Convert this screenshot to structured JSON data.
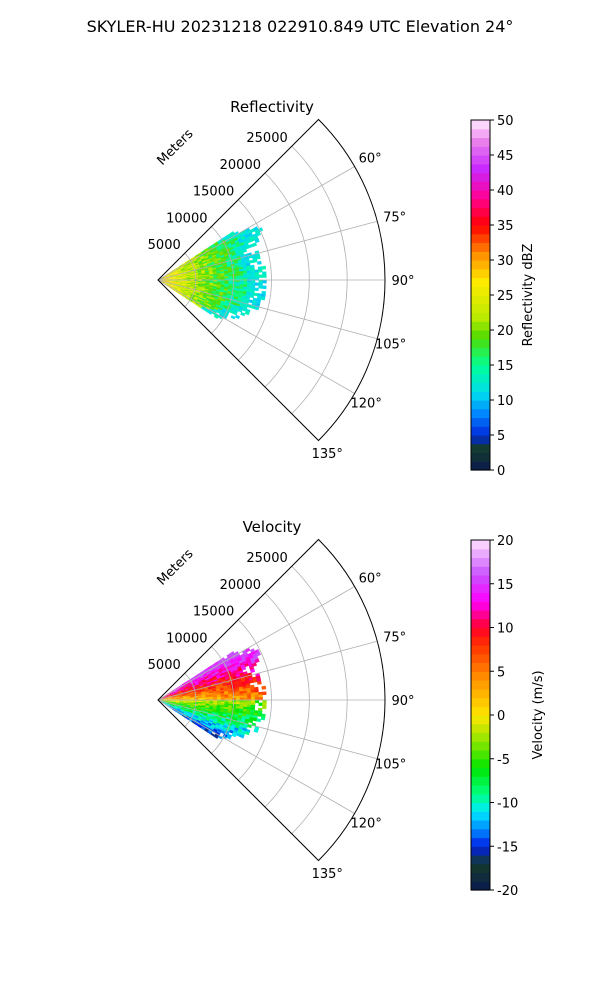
{
  "figure": {
    "suptitle": "SKYLER-HU  20231218  022910.849 UTC Elevation 24°"
  },
  "panels": [
    {
      "title": "Reflectivity",
      "radial_axis_label": "Meters",
      "range_ticks": [
        "5000",
        "10000",
        "15000",
        "20000",
        "25000"
      ],
      "azimuth_ticks": [
        "60°",
        "75°",
        "90°",
        "105°",
        "120°",
        "135°"
      ],
      "colorbar": {
        "label": "Reflectivity dBZ",
        "ticks": [
          "0",
          "5",
          "10",
          "15",
          "20",
          "25",
          "30",
          "35",
          "40",
          "45",
          "50"
        ]
      }
    },
    {
      "title": "Velocity",
      "radial_axis_label": "Meters",
      "range_ticks": [
        "5000",
        "10000",
        "15000",
        "20000",
        "25000"
      ],
      "azimuth_ticks": [
        "60°",
        "75°",
        "90°",
        "105°",
        "120°",
        "135°"
      ],
      "colorbar": {
        "label": "Velocity (m/s)",
        "ticks": [
          "-20",
          "-15",
          "-10",
          "-5",
          "0",
          "5",
          "10",
          "15",
          "20"
        ]
      }
    }
  ],
  "chart_data": [
    {
      "type": "heatmap",
      "projection": "polar-sector",
      "title": "Reflectivity",
      "theta_range_deg": [
        45,
        135
      ],
      "theta_ticks_deg": [
        60,
        75,
        90,
        105,
        120,
        135
      ],
      "r_range_m": [
        0,
        30000
      ],
      "r_ticks_m": [
        5000,
        10000,
        15000,
        20000,
        25000
      ],
      "r_label": "Meters",
      "grid": true,
      "colorbar": {
        "label": "Reflectivity dBZ",
        "range": [
          0,
          50
        ],
        "ticks": [
          0,
          5,
          10,
          15,
          20,
          25,
          30,
          35,
          40,
          45,
          50
        ]
      },
      "echo_region": {
        "theta_range_deg": [
          57,
          122
        ],
        "max_range_m": 14000
      },
      "approx_values": "mostly 15-25 dBZ, 25-35 dBZ near radar, 10-15 dBZ at echo edge"
    },
    {
      "type": "heatmap",
      "projection": "polar-sector",
      "title": "Velocity",
      "theta_range_deg": [
        45,
        135
      ],
      "theta_ticks_deg": [
        60,
        75,
        90,
        105,
        120,
        135
      ],
      "r_range_m": [
        0,
        30000
      ],
      "r_ticks_m": [
        5000,
        10000,
        15000,
        20000,
        25000
      ],
      "r_label": "Meters",
      "grid": true,
      "colorbar": {
        "label": "Velocity (m/s)",
        "range": [
          -20,
          20
        ],
        "ticks": [
          -20,
          -15,
          -10,
          -5,
          0,
          5,
          10,
          15,
          20
        ]
      },
      "echo_region": {
        "theta_range_deg": [
          57,
          122
        ],
        "max_range_m": 14000
      },
      "approx_values": "+5 to +15 m/s at low azimuths, 0 m/s near 90°, -5 to -15 m/s at high azimuths"
    }
  ]
}
